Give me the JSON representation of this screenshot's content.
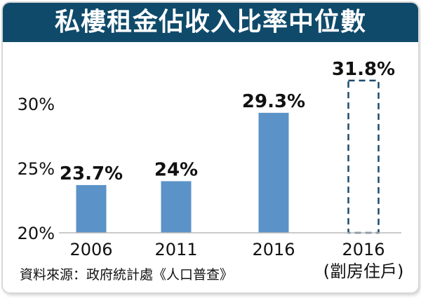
{
  "title": "私樓租金佔收入比率中位數",
  "source": "資料來源：政府統計處《人口普查》",
  "colors": {
    "header_bg": "#0f4a6a",
    "bar_fill": "#5b93c8",
    "dashed_border": "#1c4a6e"
  },
  "chart_data": {
    "type": "bar",
    "categories": [
      "2006",
      "2011",
      "2016",
      "2016"
    ],
    "sub_labels": [
      "",
      "",
      "",
      "(劏房住戶)"
    ],
    "values": [
      23.7,
      24,
      29.3,
      31.8
    ],
    "data_labels": [
      "23.7%",
      "24%",
      "29.3%",
      "31.8%"
    ],
    "styles": [
      "solid",
      "solid",
      "solid",
      "dashed"
    ],
    "yticks": [
      20,
      25,
      30
    ],
    "ytick_labels": [
      "20%",
      "25%",
      "30%"
    ],
    "ylim": [
      20,
      30
    ],
    "grid": false,
    "legend": "none"
  }
}
